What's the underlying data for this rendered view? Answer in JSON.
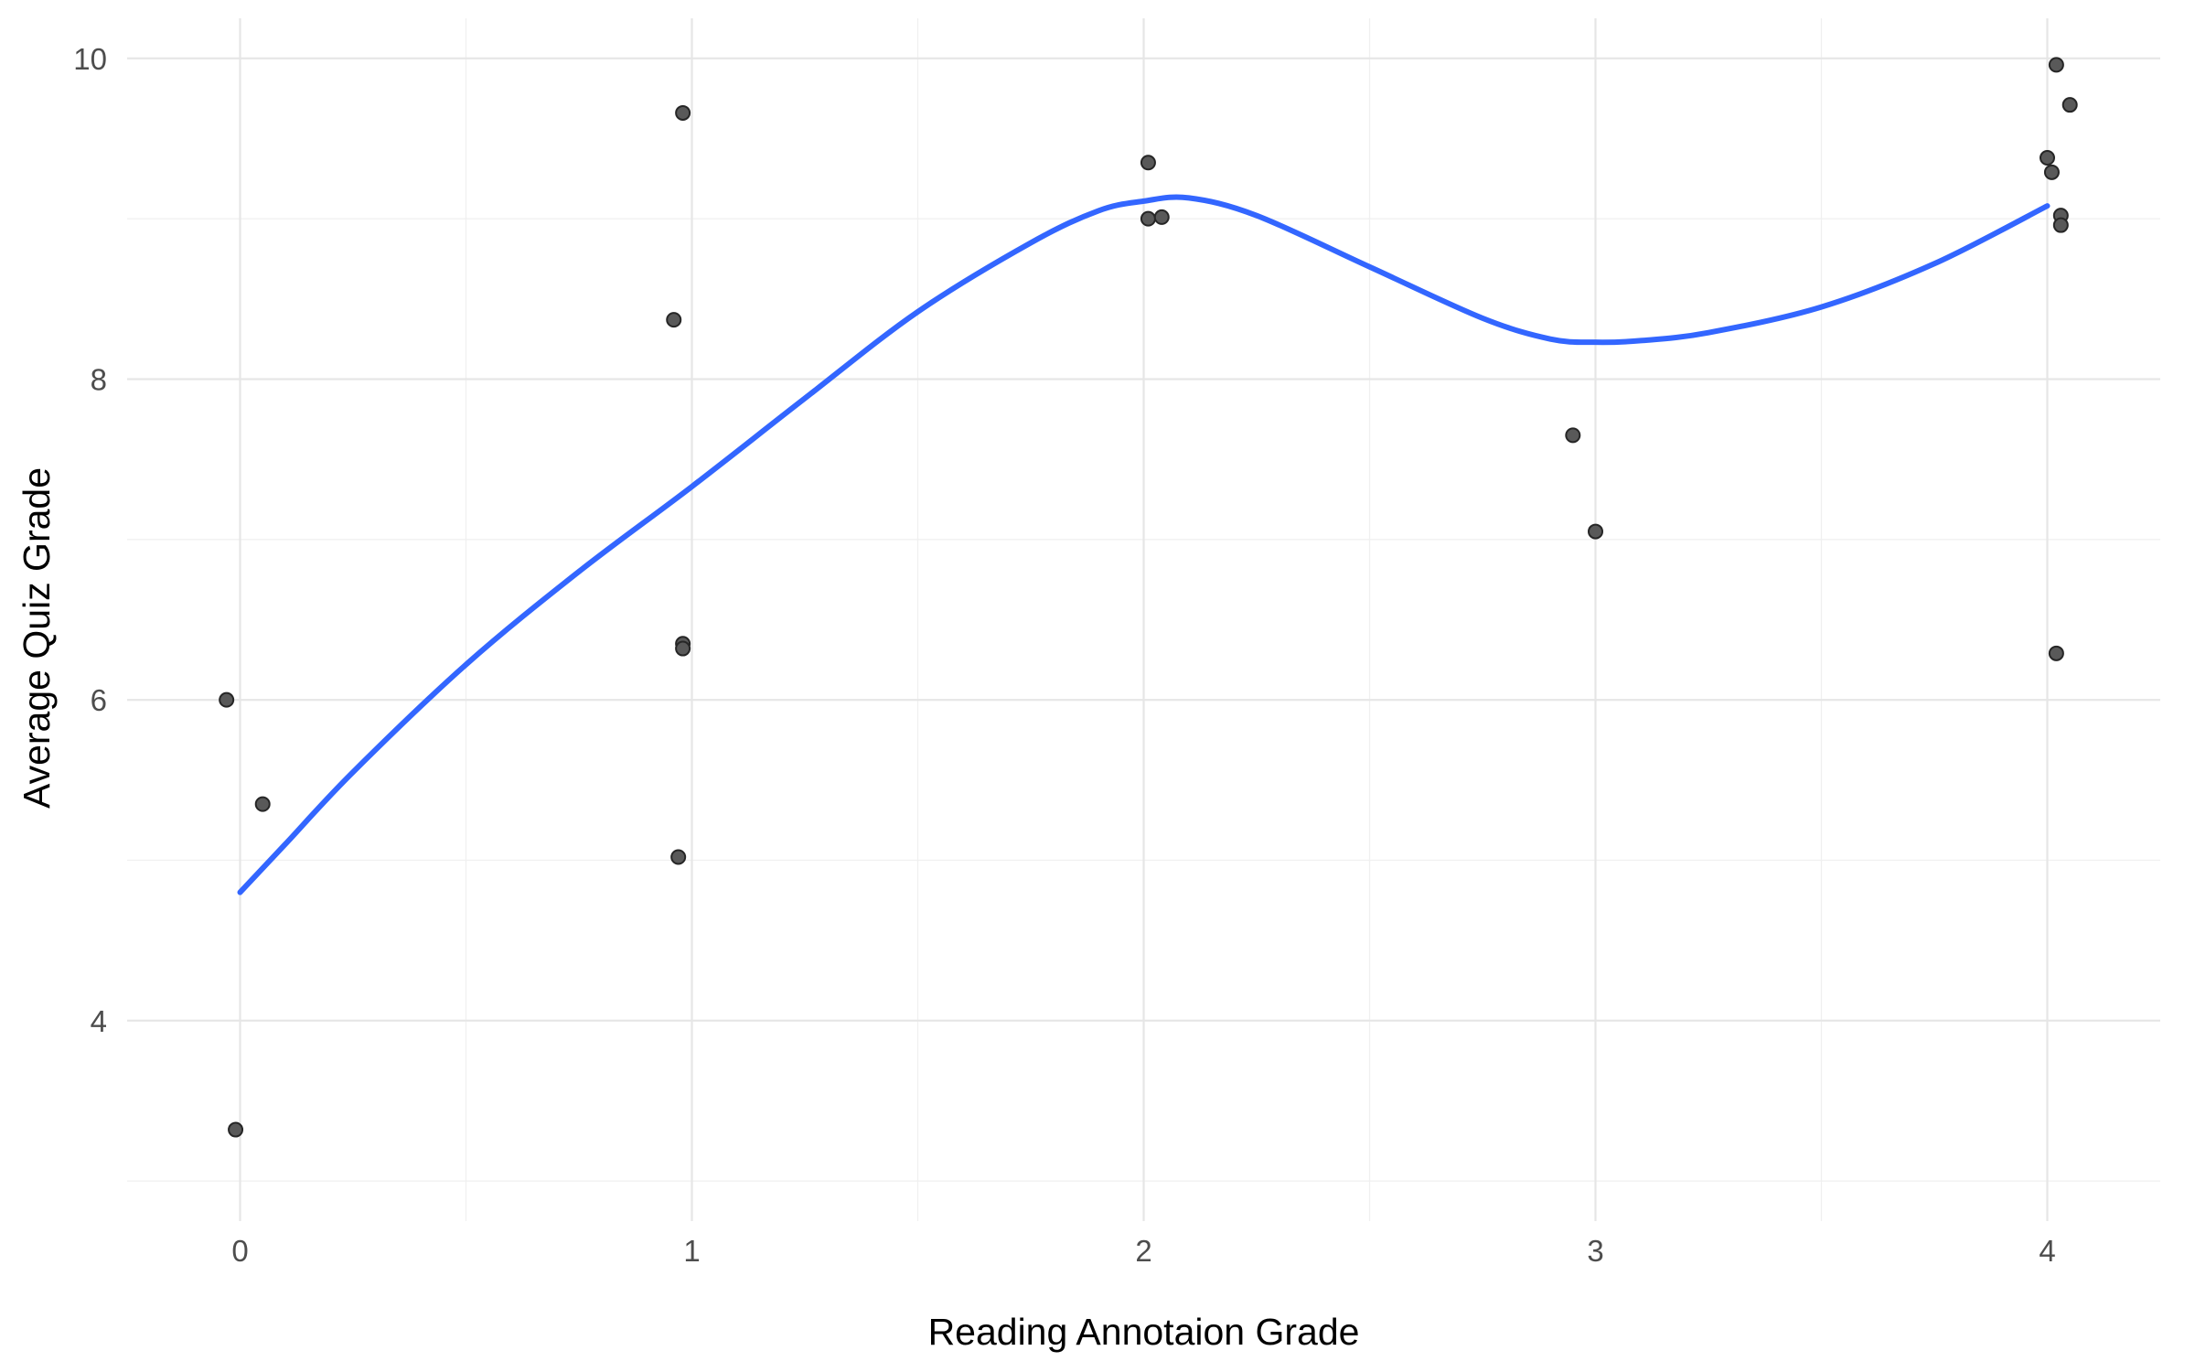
{
  "chart_data": {
    "type": "scatter",
    "title": "",
    "xlabel": "Reading Annotaion Grade",
    "ylabel": "Average Quiz Grade",
    "xlim": [
      -0.25,
      4.25
    ],
    "ylim": [
      2.75,
      10.25
    ],
    "x_ticks": [
      0,
      1,
      2,
      3,
      4
    ],
    "y_ticks": [
      4,
      6,
      8,
      10
    ],
    "x_tick_labels": [
      "0",
      "1",
      "2",
      "3",
      "4"
    ],
    "y_tick_labels": [
      "4",
      "6",
      "8",
      "10"
    ],
    "grid": true,
    "legend": "none",
    "point_color": "#595959",
    "smooth_color": "#3366ff",
    "points": [
      {
        "x": -0.03,
        "y": 6.0
      },
      {
        "x": 0.05,
        "y": 5.35
      },
      {
        "x": -0.01,
        "y": 3.32
      },
      {
        "x": 0.96,
        "y": 8.37
      },
      {
        "x": 0.98,
        "y": 9.66
      },
      {
        "x": 0.98,
        "y": 6.35
      },
      {
        "x": 0.98,
        "y": 6.32
      },
      {
        "x": 0.97,
        "y": 5.02
      },
      {
        "x": 2.01,
        "y": 9.35
      },
      {
        "x": 2.01,
        "y": 9.0
      },
      {
        "x": 2.04,
        "y": 9.01
      },
      {
        "x": 2.95,
        "y": 7.65
      },
      {
        "x": 3.0,
        "y": 7.05
      },
      {
        "x": 4.0,
        "y": 9.38
      },
      {
        "x": 4.02,
        "y": 9.96
      },
      {
        "x": 4.05,
        "y": 9.71
      },
      {
        "x": 4.01,
        "y": 9.29
      },
      {
        "x": 4.03,
        "y": 9.02
      },
      {
        "x": 4.03,
        "y": 8.96
      },
      {
        "x": 4.02,
        "y": 6.29
      }
    ],
    "smooth_line": [
      {
        "x": 0.0,
        "y": 4.8
      },
      {
        "x": 0.1,
        "y": 5.1
      },
      {
        "x": 0.25,
        "y": 5.55
      },
      {
        "x": 0.5,
        "y": 6.22
      },
      {
        "x": 0.75,
        "y": 6.8
      },
      {
        "x": 1.0,
        "y": 7.33
      },
      {
        "x": 1.25,
        "y": 7.88
      },
      {
        "x": 1.5,
        "y": 8.42
      },
      {
        "x": 1.75,
        "y": 8.85
      },
      {
        "x": 1.9,
        "y": 9.05
      },
      {
        "x": 2.0,
        "y": 9.11
      },
      {
        "x": 2.1,
        "y": 9.13
      },
      {
        "x": 2.25,
        "y": 9.02
      },
      {
        "x": 2.5,
        "y": 8.7
      },
      {
        "x": 2.75,
        "y": 8.38
      },
      {
        "x": 2.9,
        "y": 8.25
      },
      {
        "x": 3.0,
        "y": 8.23
      },
      {
        "x": 3.1,
        "y": 8.24
      },
      {
        "x": 3.25,
        "y": 8.29
      },
      {
        "x": 3.5,
        "y": 8.45
      },
      {
        "x": 3.75,
        "y": 8.72
      },
      {
        "x": 4.0,
        "y": 9.08
      }
    ]
  }
}
